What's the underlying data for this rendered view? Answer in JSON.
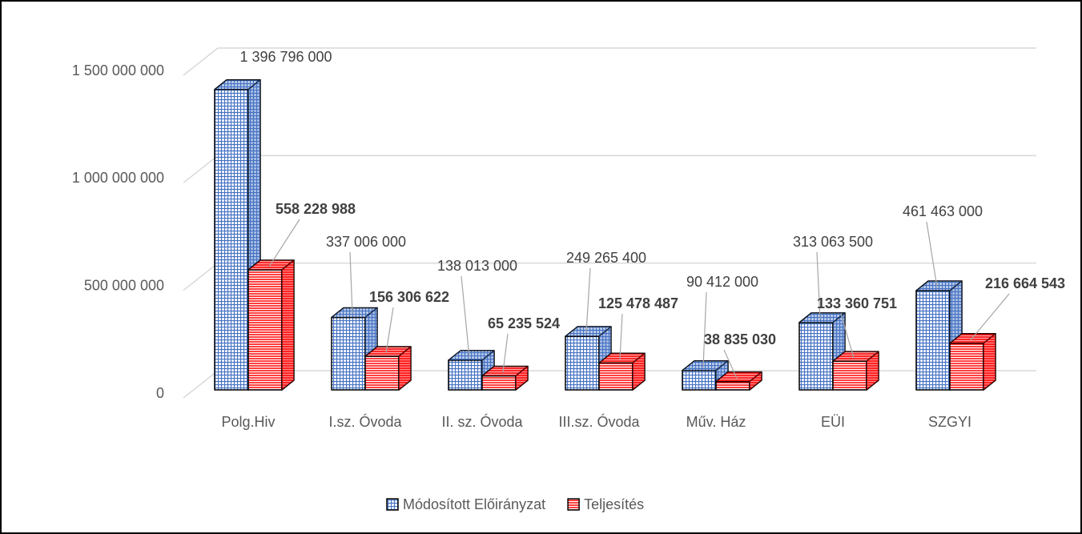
{
  "chart_data": {
    "type": "bar3d",
    "categories": [
      "Polg.Hiv",
      "I.sz. Óvoda",
      "II. sz. Óvoda",
      "III.sz. Óvoda",
      "Műv. Ház",
      "EÜI",
      "SZGYI"
    ],
    "series": [
      {
        "name": "Módosított Előirányzat",
        "color": "#4472c4",
        "values": [
          1396796000,
          337006000,
          138013000,
          249265400,
          90412000,
          313063500,
          461463000
        ],
        "value_labels": [
          "1 396 796 000",
          "337 006 000",
          "138 013 000",
          "249 265 400",
          "90 412 000",
          "313 063 500",
          "461 463 000"
        ]
      },
      {
        "name": "Teljesítés",
        "color": "#ff0000",
        "values": [
          558228988,
          156306622,
          65235524,
          125478487,
          38835030,
          133360751,
          216664543
        ],
        "value_labels": [
          "558 228 988",
          "156 306 622",
          "65 235 524",
          "125 478 487",
          "38 835 030",
          "133 360 751",
          "216 664 543"
        ]
      }
    ],
    "ylim": [
      0,
      1500000000
    ],
    "yticks": [
      0,
      {
        "value": 500000000,
        "label": "500 000 000"
      },
      {
        "value": 1000000000,
        "label": "1 000 000 000"
      },
      {
        "value": 1500000000,
        "label": "1 500 000 000"
      }
    ],
    "grid": true,
    "legend": "bottom"
  }
}
